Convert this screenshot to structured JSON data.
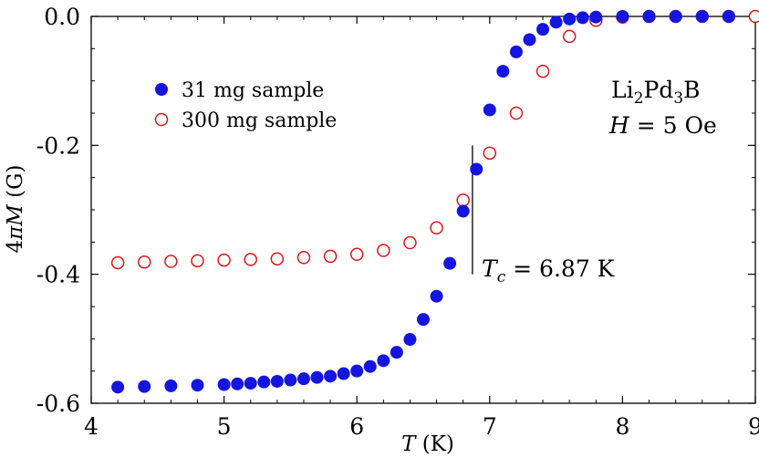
{
  "chart_data": {
    "type": "scatter",
    "xlabel": {
      "symbol": "T",
      "unit": " (K)"
    },
    "ylabel": {
      "prefix": "4",
      "pi": "π",
      "symbol": "M",
      "unit": " (G)"
    },
    "xlim": [
      4,
      9
    ],
    "ylim": [
      -0.6,
      0.0
    ],
    "x_ticks": [
      4,
      5,
      6,
      7,
      8,
      9
    ],
    "x_tick_labels": [
      "4",
      "5",
      "6",
      "7",
      "8",
      "9"
    ],
    "y_ticks": [
      0.0,
      -0.2,
      -0.4,
      -0.6
    ],
    "y_tick_labels": [
      "0.0",
      "-0.2",
      "-0.4",
      "-0.6"
    ],
    "reference_line": {
      "y": 0.0,
      "style": "dashed"
    },
    "legend_position": "upper-left",
    "series": [
      {
        "name": "31 mg sample",
        "marker": "filled-circle",
        "color": "#1515e0",
        "x": [
          4.2,
          4.4,
          4.6,
          4.8,
          5.0,
          5.1,
          5.2,
          5.3,
          5.4,
          5.5,
          5.6,
          5.7,
          5.8,
          5.9,
          6.0,
          6.1,
          6.2,
          6.3,
          6.4,
          6.5,
          6.6,
          6.7,
          6.8,
          6.9,
          7.0,
          7.1,
          7.2,
          7.3,
          7.4,
          7.5,
          7.6,
          7.7,
          7.8,
          8.0,
          8.2,
          8.4,
          8.6,
          8.8
        ],
        "y": [
          -0.575,
          -0.574,
          -0.573,
          -0.572,
          -0.571,
          -0.57,
          -0.569,
          -0.567,
          -0.566,
          -0.564,
          -0.562,
          -0.56,
          -0.558,
          -0.554,
          -0.55,
          -0.543,
          -0.534,
          -0.521,
          -0.501,
          -0.47,
          -0.434,
          -0.383,
          -0.302,
          -0.237,
          -0.145,
          -0.085,
          -0.055,
          -0.036,
          -0.02,
          -0.009,
          -0.004,
          -0.002,
          -0.001,
          0.0,
          0.0,
          0.0,
          0.0,
          0.0
        ]
      },
      {
        "name": "300 mg sample",
        "marker": "open-circle",
        "color": "#e01515",
        "x": [
          4.2,
          4.4,
          4.6,
          4.8,
          5.0,
          5.2,
          5.4,
          5.6,
          5.8,
          6.0,
          6.2,
          6.4,
          6.6,
          6.8,
          7.0,
          7.2,
          7.4,
          7.6,
          7.8,
          8.0,
          8.2,
          8.4,
          8.6,
          8.8,
          9.0
        ],
        "y": [
          -0.382,
          -0.381,
          -0.38,
          -0.379,
          -0.378,
          -0.377,
          -0.376,
          -0.374,
          -0.372,
          -0.369,
          -0.363,
          -0.351,
          -0.328,
          -0.285,
          -0.212,
          -0.15,
          -0.085,
          -0.031,
          -0.006,
          -0.001,
          0.0,
          0.0,
          0.0,
          0.0,
          0.0
        ]
      }
    ],
    "annotations": {
      "compound": {
        "base1": "Li",
        "sub1": "2",
        "base2": "Pd",
        "sub2": "3",
        "base3": "B"
      },
      "field": {
        "symbol": "H",
        "rest": " = 5 Oe"
      },
      "tc": {
        "symbol": "T",
        "sub": "c",
        "rest": " = 6.87 K",
        "x": 6.87,
        "y_top": -0.2,
        "y_bottom": -0.4
      }
    }
  }
}
